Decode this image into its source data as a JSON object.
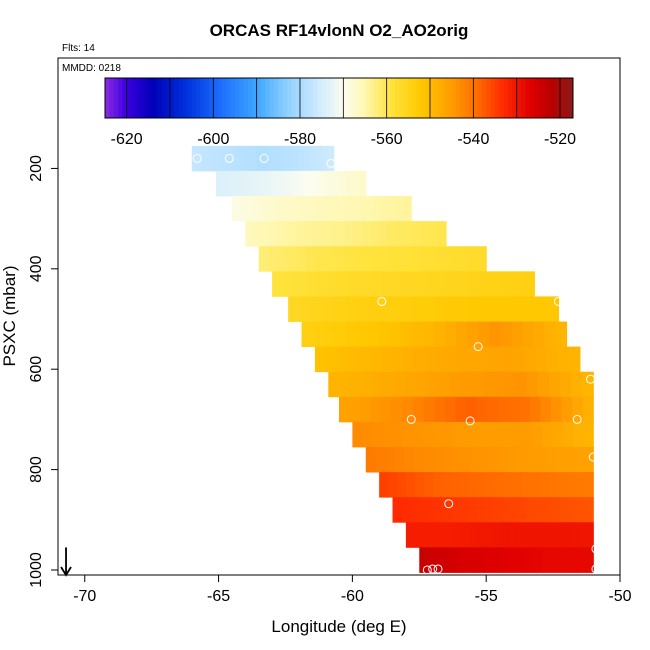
{
  "chart_data": {
    "type": "heatmap",
    "title": "ORCAS RF14vlonN O2_AO2orig",
    "flights_note": "Flts: 14",
    "date_note": "MMDD: 0218",
    "xlabel": "Longitude (deg E)",
    "ylabel": "PSXC (mbar)",
    "xlim": [
      -71,
      -50
    ],
    "ylim": [
      1010,
      -20
    ],
    "x_ticks": [
      -70,
      -65,
      -60,
      -55,
      -50
    ],
    "x_tick_labels": [
      "-70",
      "-65",
      "-60",
      "-55",
      "-50"
    ],
    "y_ticks": [
      200,
      400,
      600,
      800,
      1000
    ],
    "y_tick_labels": [
      "200",
      "400",
      "600",
      "800",
      "1000"
    ],
    "colorbar": {
      "min": -625,
      "max": -517,
      "ticks": [
        -620,
        -600,
        -580,
        -560,
        -540,
        -520
      ],
      "tick_labels": [
        "-620",
        "-600",
        "-580",
        "-560",
        "-540",
        "-520"
      ],
      "stops": [
        {
          "v": -625,
          "c": "#8a2be2"
        },
        {
          "v": -620,
          "c": "#3b00e0"
        },
        {
          "v": -614,
          "c": "#0000b8"
        },
        {
          "v": -606,
          "c": "#0033dd"
        },
        {
          "v": -598,
          "c": "#1e70ff"
        },
        {
          "v": -590,
          "c": "#3ea6ff"
        },
        {
          "v": -583,
          "c": "#8fd0ff"
        },
        {
          "v": -576,
          "c": "#cdeaff"
        },
        {
          "v": -570,
          "c": "#fbfdf0"
        },
        {
          "v": -565,
          "c": "#fff7b0"
        },
        {
          "v": -559,
          "c": "#ffe33c"
        },
        {
          "v": -552,
          "c": "#ffc800"
        },
        {
          "v": -545,
          "c": "#ff9c00"
        },
        {
          "v": -539,
          "c": "#ff6a00"
        },
        {
          "v": -533,
          "c": "#ff2a00"
        },
        {
          "v": -527,
          "c": "#e00000"
        },
        {
          "v": -522,
          "c": "#b80000"
        },
        {
          "v": -517,
          "c": "#8b1a1a"
        }
      ]
    },
    "rows": [
      {
        "p": 180,
        "lon_start": -66.0,
        "lon_end": -60.7,
        "values": [
          -577,
          -578,
          -579,
          -578,
          -576
        ]
      },
      {
        "p": 230,
        "lon_start": -65.1,
        "lon_end": -59.5,
        "values": [
          -574,
          -573,
          -571,
          -569,
          -567
        ]
      },
      {
        "p": 280,
        "lon_start": -64.5,
        "lon_end": -57.8,
        "values": [
          -569,
          -567,
          -566,
          -565,
          -564
        ]
      },
      {
        "p": 330,
        "lon_start": -64.0,
        "lon_end": -56.5,
        "values": [
          -566,
          -564,
          -563,
          -561,
          -560
        ]
      },
      {
        "p": 380,
        "lon_start": -63.5,
        "lon_end": -55.0,
        "values": [
          -562,
          -560,
          -559,
          -558,
          -557
        ]
      },
      {
        "p": 430,
        "lon_start": -63.0,
        "lon_end": -53.2,
        "values": [
          -559,
          -557,
          -556,
          -555,
          -554
        ]
      },
      {
        "p": 480,
        "lon_start": -62.4,
        "lon_end": -52.3,
        "values": [
          -556,
          -554,
          -553,
          -552,
          -552
        ]
      },
      {
        "p": 530,
        "lon_start": -61.9,
        "lon_end": -52.0,
        "values": [
          -554,
          -552,
          -549,
          -544,
          -549
        ]
      },
      {
        "p": 580,
        "lon_start": -61.4,
        "lon_end": -51.5,
        "values": [
          -551,
          -549,
          -547,
          -546,
          -549
        ]
      },
      {
        "p": 630,
        "lon_start": -60.9,
        "lon_end": -51.0,
        "values": [
          -549,
          -547,
          -545,
          -544,
          -549
        ]
      },
      {
        "p": 680,
        "lon_start": -60.5,
        "lon_end": -51.0,
        "values": [
          -546,
          -543,
          -538,
          -540,
          -548
        ]
      },
      {
        "p": 730,
        "lon_start": -60.0,
        "lon_end": -51.0,
        "values": [
          -543,
          -544,
          -545,
          -545,
          -549
        ]
      },
      {
        "p": 780,
        "lon_start": -59.5,
        "lon_end": -51.0,
        "values": [
          -541,
          -543,
          -544,
          -545,
          -546
        ]
      },
      {
        "p": 830,
        "lon_start": -59.0,
        "lon_end": -51.0,
        "values": [
          -535,
          -538,
          -539,
          -540,
          -541
        ]
      },
      {
        "p": 880,
        "lon_start": -58.5,
        "lon_end": -51.0,
        "values": [
          -533,
          -534,
          -535,
          -536,
          -537
        ]
      },
      {
        "p": 930,
        "lon_start": -58.0,
        "lon_end": -51.0,
        "values": [
          -531,
          -531,
          -530,
          -530,
          -530
        ]
      },
      {
        "p": 980,
        "lon_start": -57.5,
        "lon_end": -51.0,
        "values": [
          -524,
          -526,
          -527,
          -528,
          -528
        ]
      }
    ],
    "sample_points": [
      {
        "lon": -65.8,
        "p": 180
      },
      {
        "lon": -64.6,
        "p": 180
      },
      {
        "lon": -63.3,
        "p": 180
      },
      {
        "lon": -60.8,
        "p": 190
      },
      {
        "lon": -58.9,
        "p": 465
      },
      {
        "lon": -52.3,
        "p": 465
      },
      {
        "lon": -55.3,
        "p": 555
      },
      {
        "lon": -51.1,
        "p": 620
      },
      {
        "lon": -57.8,
        "p": 700
      },
      {
        "lon": -55.6,
        "p": 703
      },
      {
        "lon": -51.6,
        "p": 700
      },
      {
        "lon": -51.0,
        "p": 775
      },
      {
        "lon": -56.4,
        "p": 868
      },
      {
        "lon": -50.9,
        "p": 958
      },
      {
        "lon": -57.2,
        "p": 1000
      },
      {
        "lon": -57.0,
        "p": 998
      },
      {
        "lon": -56.8,
        "p": 998
      },
      {
        "lon": -50.9,
        "p": 998
      }
    ],
    "direction_arrow": {
      "lon": -70.7,
      "p_from": 955,
      "p_to": 1010
    }
  }
}
